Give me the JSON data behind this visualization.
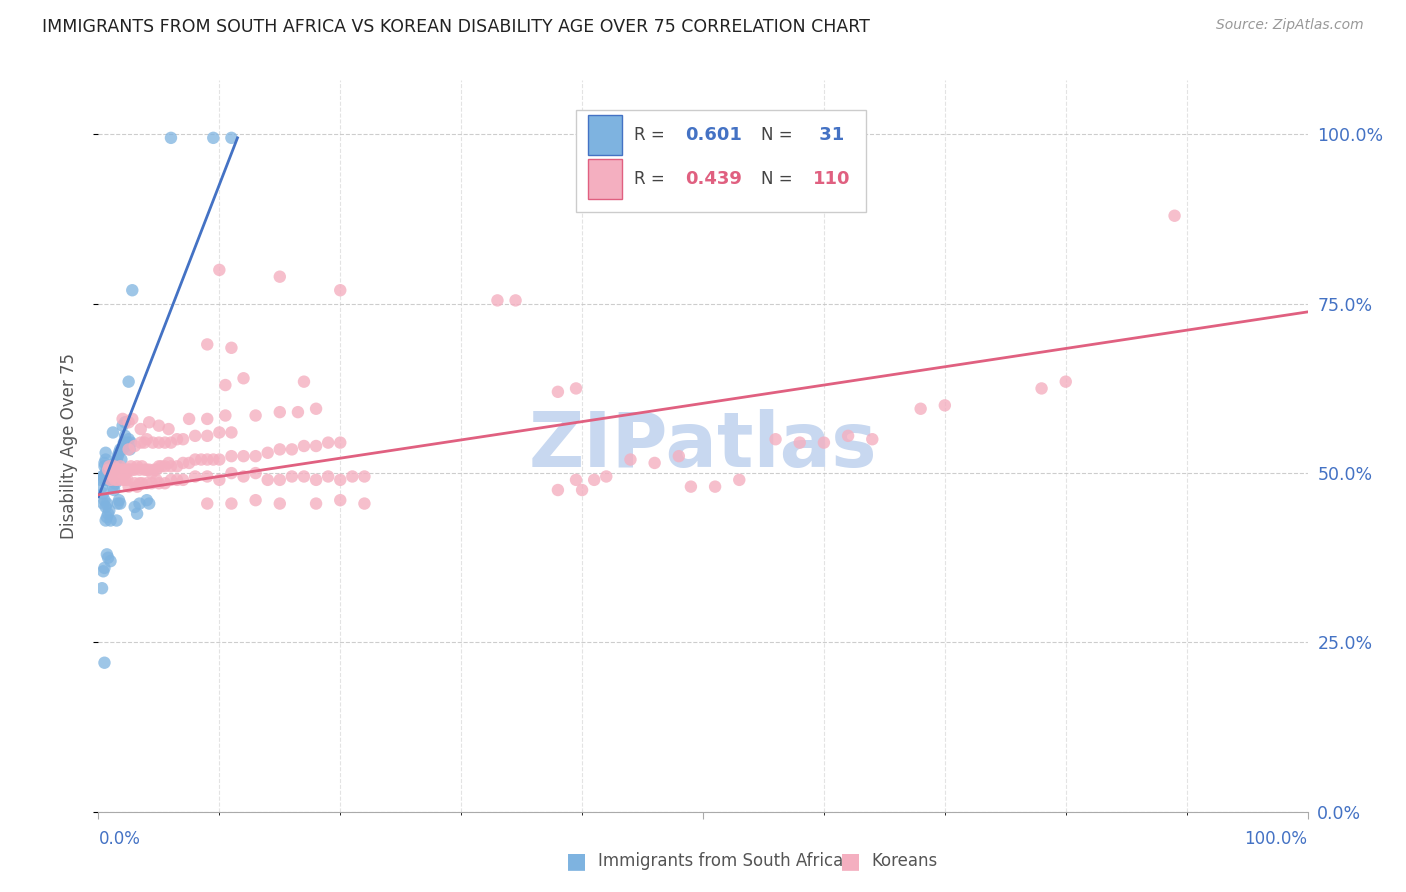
{
  "title": "IMMIGRANTS FROM SOUTH AFRICA VS KOREAN DISABILITY AGE OVER 75 CORRELATION CHART",
  "source": "Source: ZipAtlas.com",
  "ylabel": "Disability Age Over 75",
  "ytick_labels": [
    "0.0%",
    "25.0%",
    "50.0%",
    "75.0%",
    "100.0%"
  ],
  "ytick_values": [
    0.0,
    0.25,
    0.5,
    0.75,
    1.0
  ],
  "xlim": [
    0.0,
    1.0
  ],
  "ylim": [
    0.0,
    1.08
  ],
  "blue_color": "#7eb3e0",
  "pink_color": "#f4afc0",
  "blue_line_color": "#4472c4",
  "pink_line_color": "#e06080",
  "watermark": "ZIPatlas",
  "watermark_color": "#c8d8f0",
  "right_axis_color": "#4472c4",
  "grid_color": "#c8c8c8",
  "background_color": "#ffffff",
  "title_color": "#222222",
  "axis_label_color": "#555555",
  "sa_points": [
    [
      0.005,
      0.51
    ],
    [
      0.006,
      0.52
    ],
    [
      0.007,
      0.505
    ],
    [
      0.008,
      0.5
    ],
    [
      0.009,
      0.505
    ],
    [
      0.01,
      0.51
    ],
    [
      0.011,
      0.5
    ],
    [
      0.012,
      0.505
    ],
    [
      0.013,
      0.505
    ],
    [
      0.014,
      0.515
    ],
    [
      0.015,
      0.52
    ],
    [
      0.016,
      0.525
    ],
    [
      0.017,
      0.53
    ],
    [
      0.018,
      0.535
    ],
    [
      0.019,
      0.52
    ],
    [
      0.02,
      0.535
    ],
    [
      0.021,
      0.545
    ],
    [
      0.022,
      0.555
    ],
    [
      0.023,
      0.54
    ],
    [
      0.024,
      0.545
    ],
    [
      0.025,
      0.55
    ],
    [
      0.026,
      0.535
    ],
    [
      0.027,
      0.545
    ],
    [
      0.004,
      0.495
    ],
    [
      0.005,
      0.49
    ],
    [
      0.006,
      0.5
    ],
    [
      0.007,
      0.49
    ],
    [
      0.008,
      0.495
    ],
    [
      0.009,
      0.49
    ],
    [
      0.01,
      0.495
    ],
    [
      0.012,
      0.48
    ],
    [
      0.013,
      0.475
    ],
    [
      0.014,
      0.485
    ],
    [
      0.004,
      0.455
    ],
    [
      0.005,
      0.46
    ],
    [
      0.006,
      0.45
    ],
    [
      0.007,
      0.455
    ],
    [
      0.016,
      0.455
    ],
    [
      0.017,
      0.46
    ],
    [
      0.018,
      0.455
    ],
    [
      0.008,
      0.44
    ],
    [
      0.009,
      0.445
    ],
    [
      0.01,
      0.43
    ],
    [
      0.006,
      0.43
    ],
    [
      0.007,
      0.435
    ],
    [
      0.003,
      0.48
    ],
    [
      0.004,
      0.47
    ],
    [
      0.002,
      0.49
    ],
    [
      0.003,
      0.495
    ],
    [
      0.005,
      0.515
    ],
    [
      0.006,
      0.53
    ],
    [
      0.02,
      0.57
    ],
    [
      0.022,
      0.575
    ],
    [
      0.012,
      0.56
    ],
    [
      0.03,
      0.45
    ],
    [
      0.032,
      0.44
    ],
    [
      0.034,
      0.455
    ],
    [
      0.04,
      0.46
    ],
    [
      0.042,
      0.455
    ],
    [
      0.015,
      0.43
    ],
    [
      0.007,
      0.38
    ],
    [
      0.008,
      0.375
    ],
    [
      0.01,
      0.37
    ],
    [
      0.004,
      0.355
    ],
    [
      0.005,
      0.36
    ],
    [
      0.003,
      0.33
    ],
    [
      0.005,
      0.22
    ],
    [
      0.028,
      0.77
    ],
    [
      0.025,
      0.635
    ],
    [
      0.06,
      0.995
    ],
    [
      0.095,
      0.995
    ],
    [
      0.11,
      0.995
    ]
  ],
  "korean_points": [
    [
      0.008,
      0.505
    ],
    [
      0.009,
      0.51
    ],
    [
      0.01,
      0.5
    ],
    [
      0.011,
      0.505
    ],
    [
      0.012,
      0.505
    ],
    [
      0.013,
      0.51
    ],
    [
      0.014,
      0.505
    ],
    [
      0.015,
      0.505
    ],
    [
      0.016,
      0.505
    ],
    [
      0.017,
      0.505
    ],
    [
      0.018,
      0.51
    ],
    [
      0.019,
      0.505
    ],
    [
      0.02,
      0.505
    ],
    [
      0.021,
      0.5
    ],
    [
      0.022,
      0.505
    ],
    [
      0.023,
      0.5
    ],
    [
      0.024,
      0.505
    ],
    [
      0.025,
      0.505
    ],
    [
      0.026,
      0.505
    ],
    [
      0.027,
      0.51
    ],
    [
      0.028,
      0.505
    ],
    [
      0.03,
      0.505
    ],
    [
      0.032,
      0.51
    ],
    [
      0.034,
      0.505
    ],
    [
      0.036,
      0.51
    ],
    [
      0.038,
      0.505
    ],
    [
      0.04,
      0.505
    ],
    [
      0.042,
      0.505
    ],
    [
      0.044,
      0.5
    ],
    [
      0.046,
      0.505
    ],
    [
      0.048,
      0.505
    ],
    [
      0.05,
      0.51
    ],
    [
      0.052,
      0.51
    ],
    [
      0.055,
      0.51
    ],
    [
      0.058,
      0.515
    ],
    [
      0.06,
      0.51
    ],
    [
      0.065,
      0.51
    ],
    [
      0.07,
      0.515
    ],
    [
      0.075,
      0.515
    ],
    [
      0.08,
      0.52
    ],
    [
      0.085,
      0.52
    ],
    [
      0.09,
      0.52
    ],
    [
      0.095,
      0.52
    ],
    [
      0.1,
      0.52
    ],
    [
      0.11,
      0.525
    ],
    [
      0.12,
      0.525
    ],
    [
      0.13,
      0.525
    ],
    [
      0.14,
      0.53
    ],
    [
      0.15,
      0.535
    ],
    [
      0.16,
      0.535
    ],
    [
      0.17,
      0.54
    ],
    [
      0.18,
      0.54
    ],
    [
      0.19,
      0.545
    ],
    [
      0.2,
      0.545
    ],
    [
      0.01,
      0.49
    ],
    [
      0.012,
      0.495
    ],
    [
      0.014,
      0.49
    ],
    [
      0.016,
      0.49
    ],
    [
      0.018,
      0.495
    ],
    [
      0.02,
      0.49
    ],
    [
      0.022,
      0.49
    ],
    [
      0.024,
      0.49
    ],
    [
      0.025,
      0.48
    ],
    [
      0.03,
      0.485
    ],
    [
      0.032,
      0.48
    ],
    [
      0.034,
      0.485
    ],
    [
      0.036,
      0.485
    ],
    [
      0.04,
      0.485
    ],
    [
      0.044,
      0.485
    ],
    [
      0.048,
      0.49
    ],
    [
      0.05,
      0.485
    ],
    [
      0.055,
      0.485
    ],
    [
      0.06,
      0.49
    ],
    [
      0.065,
      0.49
    ],
    [
      0.07,
      0.49
    ],
    [
      0.08,
      0.495
    ],
    [
      0.09,
      0.495
    ],
    [
      0.1,
      0.49
    ],
    [
      0.11,
      0.5
    ],
    [
      0.12,
      0.495
    ],
    [
      0.13,
      0.5
    ],
    [
      0.14,
      0.49
    ],
    [
      0.15,
      0.49
    ],
    [
      0.16,
      0.495
    ],
    [
      0.17,
      0.495
    ],
    [
      0.18,
      0.49
    ],
    [
      0.19,
      0.495
    ],
    [
      0.2,
      0.49
    ],
    [
      0.21,
      0.495
    ],
    [
      0.22,
      0.495
    ],
    [
      0.025,
      0.535
    ],
    [
      0.03,
      0.54
    ],
    [
      0.035,
      0.545
    ],
    [
      0.038,
      0.545
    ],
    [
      0.04,
      0.55
    ],
    [
      0.045,
      0.545
    ],
    [
      0.05,
      0.545
    ],
    [
      0.055,
      0.545
    ],
    [
      0.06,
      0.545
    ],
    [
      0.065,
      0.55
    ],
    [
      0.07,
      0.55
    ],
    [
      0.08,
      0.555
    ],
    [
      0.09,
      0.555
    ],
    [
      0.1,
      0.56
    ],
    [
      0.11,
      0.56
    ],
    [
      0.02,
      0.58
    ],
    [
      0.025,
      0.575
    ],
    [
      0.028,
      0.58
    ],
    [
      0.035,
      0.565
    ],
    [
      0.042,
      0.575
    ],
    [
      0.05,
      0.57
    ],
    [
      0.058,
      0.565
    ],
    [
      0.075,
      0.58
    ],
    [
      0.09,
      0.58
    ],
    [
      0.105,
      0.585
    ],
    [
      0.13,
      0.585
    ],
    [
      0.15,
      0.59
    ],
    [
      0.165,
      0.59
    ],
    [
      0.18,
      0.595
    ],
    [
      0.105,
      0.63
    ],
    [
      0.12,
      0.64
    ],
    [
      0.17,
      0.635
    ],
    [
      0.09,
      0.455
    ],
    [
      0.11,
      0.455
    ],
    [
      0.13,
      0.46
    ],
    [
      0.15,
      0.455
    ],
    [
      0.18,
      0.455
    ],
    [
      0.2,
      0.46
    ],
    [
      0.22,
      0.455
    ],
    [
      0.1,
      0.8
    ],
    [
      0.15,
      0.79
    ],
    [
      0.2,
      0.77
    ],
    [
      0.09,
      0.69
    ],
    [
      0.11,
      0.685
    ],
    [
      0.33,
      0.755
    ],
    [
      0.345,
      0.755
    ],
    [
      0.38,
      0.62
    ],
    [
      0.395,
      0.625
    ],
    [
      0.395,
      0.49
    ],
    [
      0.41,
      0.49
    ],
    [
      0.42,
      0.495
    ],
    [
      0.44,
      0.52
    ],
    [
      0.46,
      0.515
    ],
    [
      0.48,
      0.525
    ],
    [
      0.49,
      0.48
    ],
    [
      0.51,
      0.48
    ],
    [
      0.53,
      0.49
    ],
    [
      0.56,
      0.55
    ],
    [
      0.58,
      0.545
    ],
    [
      0.6,
      0.545
    ],
    [
      0.62,
      0.555
    ],
    [
      0.64,
      0.55
    ],
    [
      0.68,
      0.595
    ],
    [
      0.7,
      0.6
    ],
    [
      0.78,
      0.625
    ],
    [
      0.8,
      0.635
    ],
    [
      0.89,
      0.88
    ],
    [
      0.38,
      0.475
    ],
    [
      0.4,
      0.475
    ]
  ],
  "sa_line_x": [
    0.0,
    0.115
  ],
  "sa_line_y": [
    0.465,
    0.995
  ],
  "korean_line_x": [
    0.0,
    1.0
  ],
  "korean_line_y": [
    0.468,
    0.738
  ]
}
